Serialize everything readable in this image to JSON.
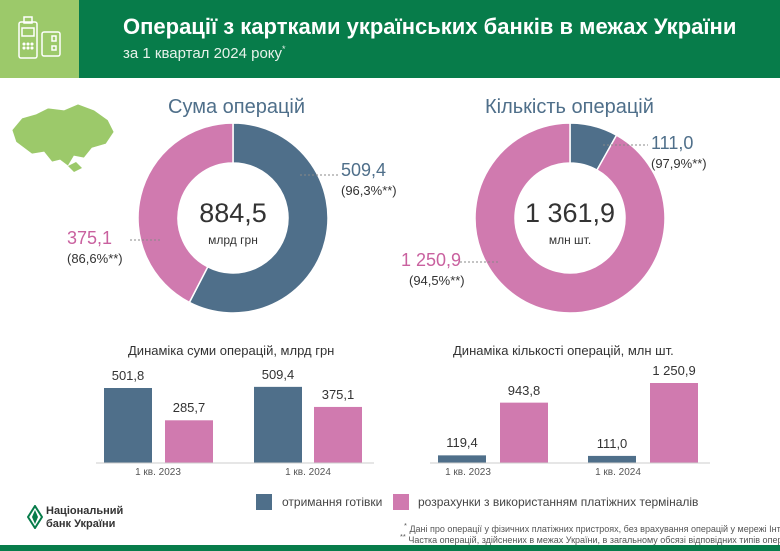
{
  "header": {
    "title": "Операції з картками українських банків в межах України",
    "subtitle": "за 1 квартал 2024 року",
    "subtitle_mark": "*",
    "icon": "pos-terminal-card-icon"
  },
  "colors": {
    "cash": "#4f6f8a",
    "terminals": "#d07aaf",
    "header": "#077c4a",
    "accent_light": "#9cc96a"
  },
  "chart_data": [
    {
      "type": "pie",
      "title": "Сума операцій",
      "center_value": "884,5",
      "center_unit": "млрд грн",
      "slices": [
        {
          "label": "отримання готівки",
          "value": 509.4,
          "display": "509,4",
          "share": "(96,3%**)"
        },
        {
          "label": "розрахунки з використанням платіжних терміналів",
          "value": 375.1,
          "display": "375,1",
          "share": "(86,6%**)"
        }
      ]
    },
    {
      "type": "pie",
      "title": "Кількість операцій",
      "center_value": "1 361,9",
      "center_unit": "млн шт.",
      "slices": [
        {
          "label": "отримання готівки",
          "value": 111.0,
          "display": "111,0",
          "share": "(97,9%**)"
        },
        {
          "label": "розрахунки з використанням платіжних терміналів",
          "value": 1250.9,
          "display": "1 250,9",
          "share": "(94,5%**)"
        }
      ]
    },
    {
      "type": "bar",
      "title": "Динаміка суми операцій, млрд грн",
      "categories": [
        "1 кв. 2023",
        "1 кв. 2024"
      ],
      "series": [
        {
          "name": "отримання готівки",
          "values": [
            501.8,
            509.4
          ],
          "labels": [
            "501,8",
            "509,4"
          ]
        },
        {
          "name": "розрахунки з використанням платіжних терміналів",
          "values": [
            285.7,
            375.1
          ],
          "labels": [
            "285,7",
            "375,1"
          ]
        }
      ]
    },
    {
      "type": "bar",
      "title": "Динаміка кількості операцій, млн шт.",
      "categories": [
        "1 кв. 2023",
        "1 кв. 2024"
      ],
      "series": [
        {
          "name": "отримання готівки",
          "values": [
            119.4,
            111.0
          ],
          "labels": [
            "119,4",
            "111,0"
          ]
        },
        {
          "name": "розрахунки з використанням платіжних терміналів",
          "values": [
            943.8,
            1250.9
          ],
          "labels": [
            "943,8",
            "1 250,9"
          ]
        }
      ]
    }
  ],
  "legend": {
    "cash": "отримання готівки",
    "terminals": "розрахунки з використанням платіжних терміналів"
  },
  "logo": {
    "line1": "Національний",
    "line2": "банк України"
  },
  "footnotes": {
    "f1_mark": "*",
    "f1": "Дані про операції у фізичних платіжних пристроях, без врахування операцій у мережі Інтернет",
    "f2_mark": "**",
    "f2": "Частка операцій, здійснених в межах України, в загальному обсязі відповідних типів операцій, %"
  }
}
